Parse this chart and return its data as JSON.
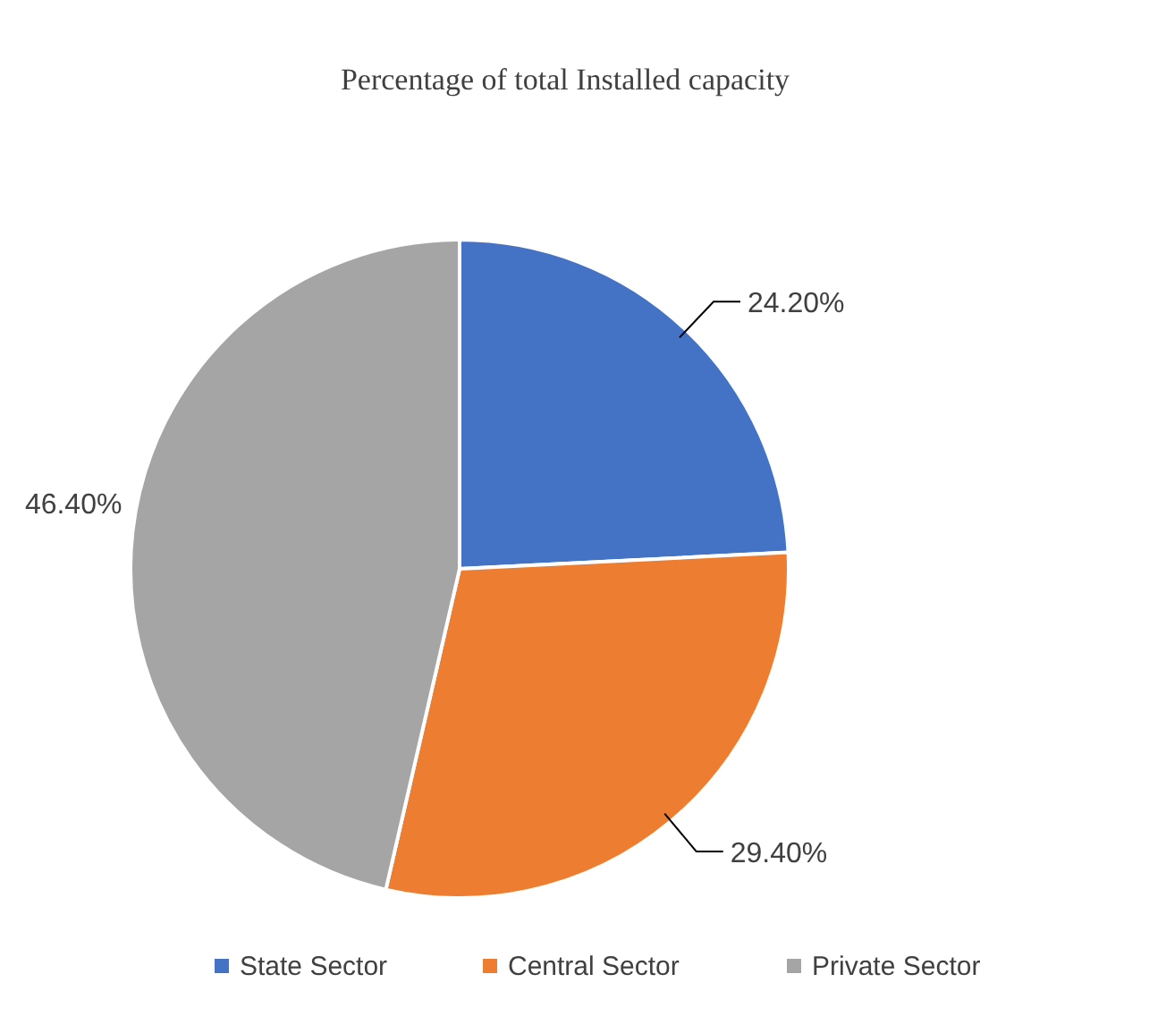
{
  "chart_data": {
    "type": "pie",
    "title": "Percentage of total Installed capacity",
    "categories": [
      "State Sector",
      "Central Sector",
      "Private Sector"
    ],
    "values": [
      24.2,
      29.4,
      46.4
    ],
    "colors": [
      "#4472c4",
      "#ed7d31",
      "#a5a5a5"
    ],
    "value_labels": [
      "24.20%",
      "29.40%",
      "46.40%"
    ],
    "legend": "bottom"
  }
}
